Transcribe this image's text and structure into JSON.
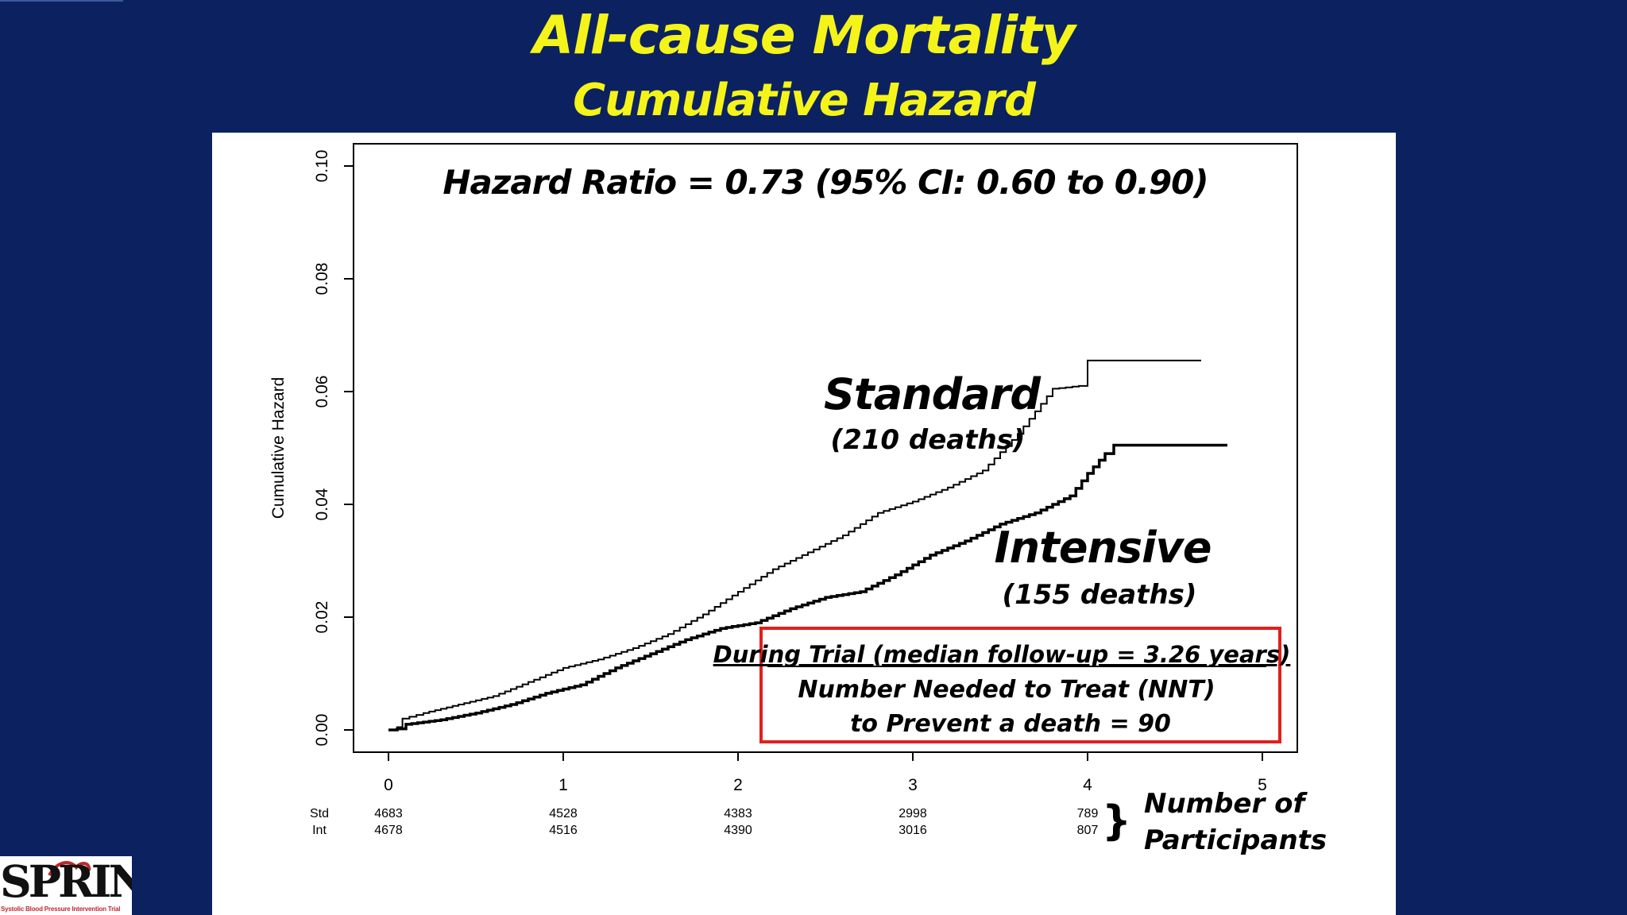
{
  "header": {
    "title": "All-cause Mortality",
    "subtitle": "Cumulative Hazard"
  },
  "colors": {
    "background": "#0c2260",
    "title": "#f4f41a",
    "panel": "#ffffff",
    "box_border": "#e0201e",
    "curve": "#000000"
  },
  "chart_data": {
    "type": "line",
    "ylabel": "Cumulative Hazard",
    "xlabel": "",
    "xlim": [
      0,
      5
    ],
    "ylim": [
      0,
      0.1
    ],
    "x_ticks": [
      0,
      1,
      2,
      3,
      4,
      5
    ],
    "x_tick_labels": [
      "0",
      "1",
      "2",
      "3",
      "4",
      "5"
    ],
    "y_ticks": [
      0,
      0.02,
      0.04,
      0.06,
      0.08,
      0.1
    ],
    "y_tick_labels": [
      "0.00",
      "0.02",
      "0.04",
      "0.06",
      "0.08",
      "0.10"
    ],
    "annotation": "Hazard Ratio = 0.73 (95% CI: 0.60 to 0.90)",
    "series": [
      {
        "name": "Standard",
        "deaths_label": "(210 deaths)",
        "x": [
          0,
          0.05,
          0.08,
          0.2,
          0.4,
          0.6,
          0.8,
          1.0,
          1.2,
          1.4,
          1.6,
          1.8,
          2.0,
          2.2,
          2.4,
          2.6,
          2.8,
          3.0,
          3.2,
          3.4,
          3.6,
          3.8,
          3.95,
          4.0,
          4.65
        ],
        "values": [
          0,
          0.0005,
          0.002,
          0.003,
          0.0045,
          0.006,
          0.0085,
          0.011,
          0.0125,
          0.0145,
          0.017,
          0.0205,
          0.0245,
          0.0285,
          0.0315,
          0.0345,
          0.0385,
          0.0405,
          0.043,
          0.046,
          0.0525,
          0.0605,
          0.061,
          0.0655,
          0.0655
        ]
      },
      {
        "name": "Intensive",
        "deaths_label": "(155 deaths)",
        "x": [
          0,
          0.05,
          0.1,
          0.3,
          0.5,
          0.7,
          0.9,
          1.1,
          1.3,
          1.5,
          1.7,
          1.9,
          2.1,
          2.3,
          2.5,
          2.7,
          2.9,
          3.1,
          3.3,
          3.5,
          3.7,
          3.9,
          4.0,
          4.1,
          4.15,
          4.8
        ],
        "values": [
          0,
          0.0002,
          0.001,
          0.0018,
          0.003,
          0.0045,
          0.0065,
          0.008,
          0.011,
          0.0135,
          0.016,
          0.018,
          0.019,
          0.0215,
          0.0235,
          0.0245,
          0.0275,
          0.031,
          0.0335,
          0.0365,
          0.0385,
          0.0415,
          0.0455,
          0.049,
          0.0505,
          0.0505
        ]
      }
    ],
    "risk_table": {
      "rows": [
        {
          "label": "Std",
          "counts": [
            "4683",
            "4528",
            "4383",
            "2998",
            "789"
          ]
        },
        {
          "label": "Int",
          "counts": [
            "4678",
            "4516",
            "4390",
            "3016",
            "807"
          ]
        }
      ],
      "bracket": "}",
      "caption_line1": "Number of",
      "caption_line2": "Participants"
    },
    "note_box": {
      "line1": "During Trial (median follow-up = 3.26 years)",
      "line2": "Number Needed to Treat (NNT)",
      "line3": "to Prevent a death = 90"
    }
  },
  "logo": {
    "word": "SPRINT",
    "tagline": "Systolic Blood Pressure Intervention Trial"
  }
}
